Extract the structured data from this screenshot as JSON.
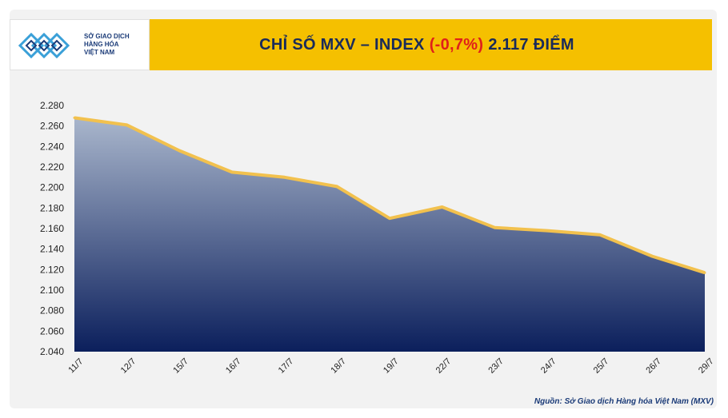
{
  "header": {
    "logo_lines": [
      "SỞ GIAO DỊCH",
      "HÀNG HÓA",
      "VIỆT NAM"
    ],
    "title_prefix": "CHỈ SỐ MXV – INDEX",
    "title_change": "(-0,7%)",
    "title_suffix": "2.117 ĐIỂM"
  },
  "source": "Nguồn: Sở Giao dịch Hàng hóa Việt Nam (MXV)",
  "colors": {
    "accent": "#f5c000",
    "line": "#f2c14e",
    "fill_top": "#a9b6cc",
    "fill_bottom": "#0b1f5c",
    "negative": "#e0201a",
    "brand": "#1b3b78"
  },
  "chart_data": {
    "type": "area",
    "title": "CHỈ SỐ MXV – INDEX (-0,7%) 2.117 ĐIỂM",
    "categories": [
      "11/7",
      "12/7",
      "15/7",
      "16/7",
      "17/7",
      "18/7",
      "19/7",
      "22/7",
      "23/7",
      "24/7",
      "25/7",
      "26/7",
      "29/7"
    ],
    "values": [
      2268,
      2261,
      2236,
      2215,
      2210,
      2201,
      2170,
      2181,
      2161,
      2158,
      2154,
      2133,
      2117
    ],
    "yticks": [
      "2.040",
      "2.060",
      "2.080",
      "2.100",
      "2.120",
      "2.140",
      "2.160",
      "2.180",
      "2.200",
      "2.220",
      "2.240",
      "2.260",
      "2.280"
    ],
    "ylim": [
      2040,
      2280
    ],
    "xlabel": "",
    "ylabel": "",
    "grid": false,
    "legend": "none"
  }
}
